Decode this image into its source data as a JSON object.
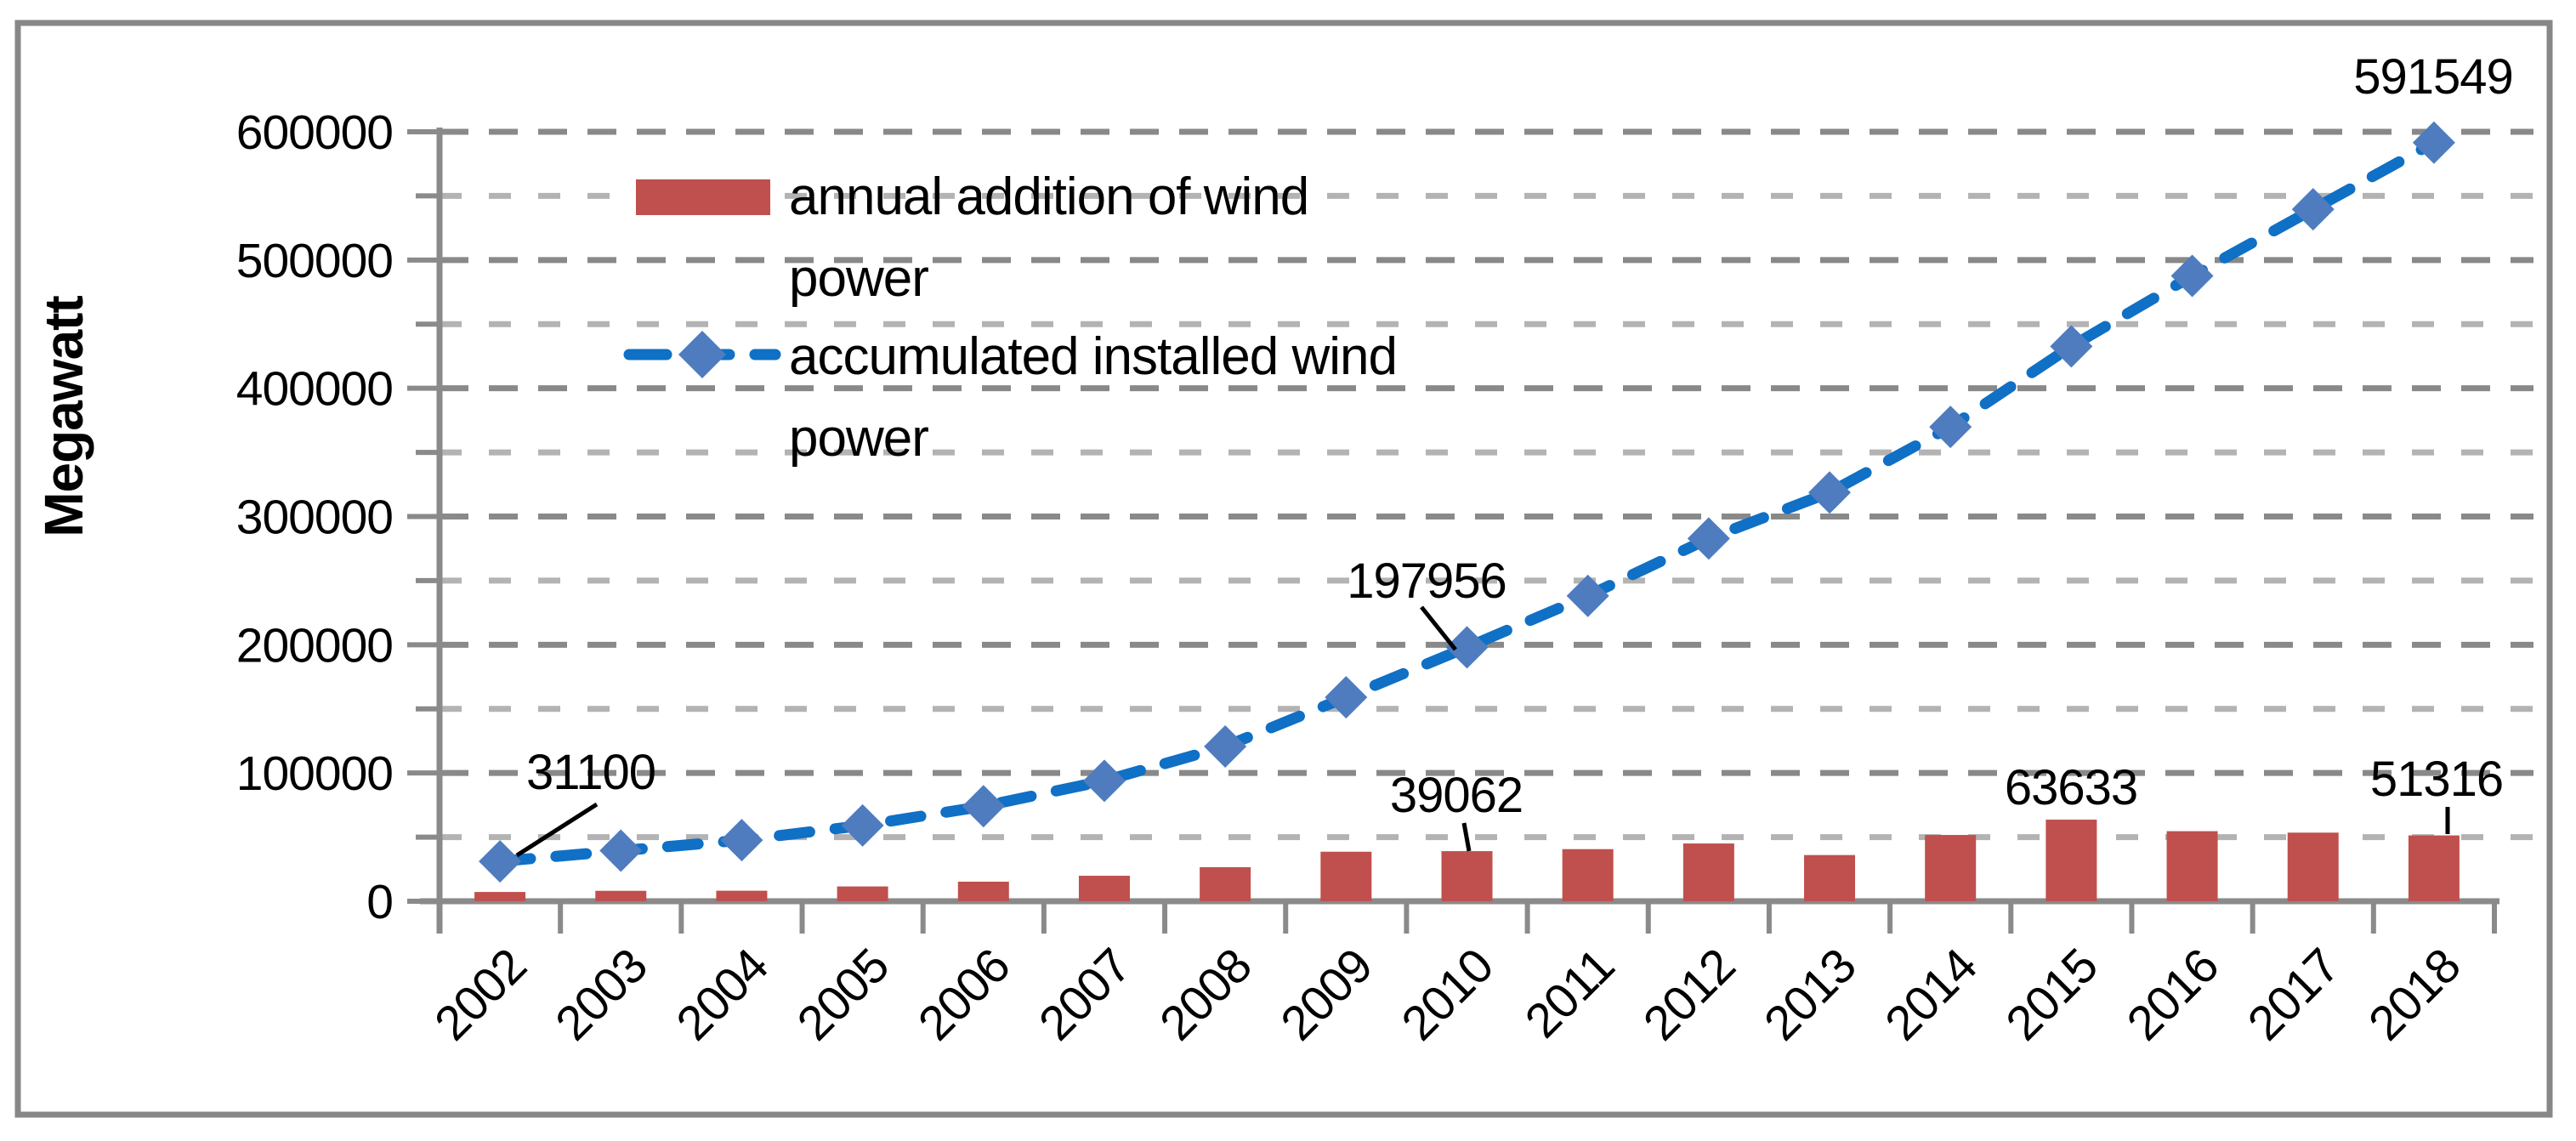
{
  "chart_data": {
    "type": "combo-bar-line",
    "title": "",
    "ylabel": "Megawatt",
    "xlabel": "",
    "categories": [
      "2002",
      "2003",
      "2004",
      "2005",
      "2006",
      "2007",
      "2008",
      "2009",
      "2010",
      "2011",
      "2012",
      "2013",
      "2014",
      "2015",
      "2016",
      "2017",
      "2018"
    ],
    "series": [
      {
        "name": "annual addition of wind power",
        "legend_lines": [
          "annual addition of wind",
          "power"
        ],
        "type": "bar",
        "color": "#C0504D",
        "values": [
          7227,
          8133,
          8207,
          11531,
          15245,
          19866,
          26560,
          38610,
          39062,
          40635,
          45034,
          36023,
          51675,
          63633,
          54642,
          53500,
          51316
        ]
      },
      {
        "name": "accumulated installed wind power",
        "legend_lines": [
          "accumulated installed wind",
          "power"
        ],
        "type": "line",
        "color": "#0F70C5",
        "marker": "diamond",
        "marker_color": "#4E7CBF",
        "line_style": "dashed",
        "values": [
          31100,
          39431,
          47620,
          59091,
          74052,
          93924,
          120696,
          159052,
          197956,
          238110,
          282850,
          318697,
          369862,
          432680,
          487657,
          539581,
          591549
        ]
      }
    ],
    "ylim": [
      0,
      600000
    ],
    "y_major_step": 100000,
    "y_minor_step": 50000,
    "y_tick_labels": [
      "0",
      "100000",
      "200000",
      "300000",
      "400000",
      "500000",
      "600000"
    ],
    "grid": {
      "orientation": "horizontal",
      "style": "dashed",
      "major_color": "#898989",
      "minor_color": "#B3B3B3"
    },
    "legend_position": "top-left-inside",
    "annotations": [
      {
        "text": "31100",
        "series": 1,
        "index": 0,
        "has_leader": true
      },
      {
        "text": "197956",
        "series": 1,
        "index": 8,
        "has_leader": true
      },
      {
        "text": "591549",
        "series": 1,
        "index": 16,
        "has_leader": false
      },
      {
        "text": "39062",
        "series": 0,
        "index": 8,
        "has_leader": true
      },
      {
        "text": "63633",
        "series": 0,
        "index": 13,
        "has_leader": false
      },
      {
        "text": "51316",
        "series": 0,
        "index": 16,
        "has_leader": true
      }
    ]
  },
  "frame": {
    "background": "#FFFFFF",
    "border_color": "#878787",
    "axis_color": "#8A8A8A",
    "text_color": "#000000",
    "leader_line_color": "#000000"
  }
}
